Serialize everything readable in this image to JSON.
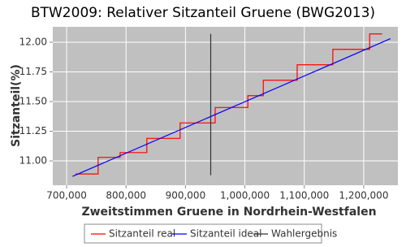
{
  "chart_data": {
    "type": "line",
    "title": "BTW2009: Relativer Sitzanteil Gruene (BWG2013)",
    "xlabel": "Zweitstimmen Gruene in Nordrhein-Westfalen",
    "ylabel": "Sitzanteil(%)",
    "xlim": [
      676700,
      1257500
    ],
    "ylim": [
      10.795,
      12.13
    ],
    "xticks": [
      {
        "value": 700000,
        "label": "700,000"
      },
      {
        "value": 800000,
        "label": "800,000"
      },
      {
        "value": 900000,
        "label": "900,000"
      },
      {
        "value": 1000000,
        "label": "1,000,000"
      },
      {
        "value": 1100000,
        "label": "1,100,000"
      },
      {
        "value": 1200000,
        "label": "1,200,000"
      }
    ],
    "yticks": [
      {
        "value": 11,
        "label": "11.00"
      },
      11.25,
      {
        "value": 11.5,
        "label": "11.50"
      },
      11.75,
      {
        "value": 12,
        "label": "12.00"
      }
    ],
    "grid": true,
    "series": [
      {
        "name": "Sitzanteil real",
        "color": "#ff0000",
        "x": [
          715000,
          753000,
          753000,
          790000,
          790000,
          835000,
          835000,
          891000,
          891000,
          950000,
          950000,
          1005000,
          1005000,
          1031000,
          1031000,
          1088000,
          1088000,
          1148000,
          1148000,
          1210000,
          1210000,
          1231000
        ],
        "values": [
          10.89,
          10.89,
          11.03,
          11.03,
          11.07,
          11.07,
          11.19,
          11.19,
          11.32,
          11.32,
          11.45,
          11.45,
          11.55,
          11.55,
          11.68,
          11.68,
          11.81,
          11.81,
          11.94,
          11.94,
          12.07,
          12.07
        ]
      },
      {
        "name": "Sitzanteil ideal",
        "color": "#0000ff",
        "x": [
          710000,
          1245000
        ],
        "values": [
          10.87,
          12.03
        ]
      },
      {
        "name": "Wahlergebnis",
        "color": "#333333",
        "x": [
          942500,
          942500
        ],
        "values": [
          10.88,
          12.07
        ]
      }
    ]
  }
}
